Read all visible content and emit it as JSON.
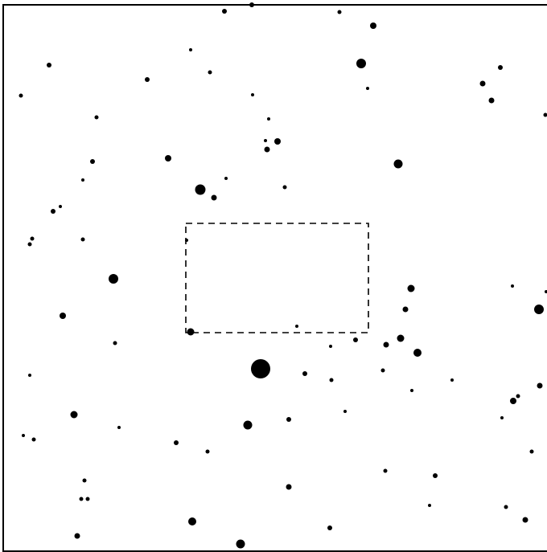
{
  "colors": {
    "background": "#ffffff",
    "ink": "#000000"
  },
  "star_field": {
    "selection_box_style": "dashed",
    "star_sizes": [
      "small",
      "medium",
      "large",
      "very-large"
    ]
  }
}
